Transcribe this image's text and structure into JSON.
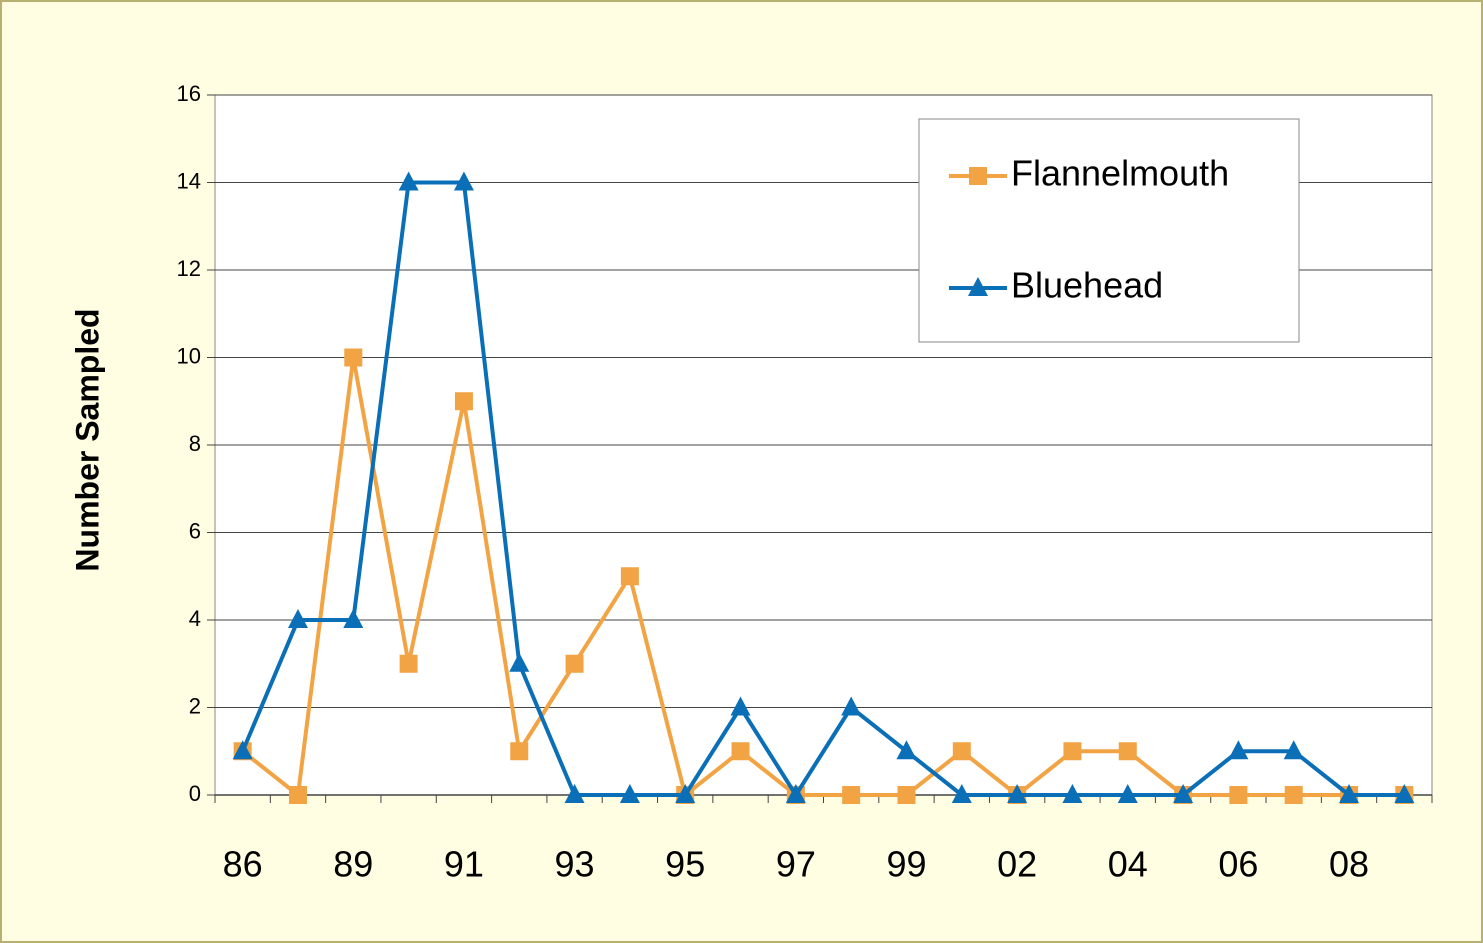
{
  "chart_data": {
    "type": "line",
    "y_label": "Number Sampled",
    "categories": [
      "86",
      null,
      "89",
      null,
      "91",
      null,
      "93",
      null,
      "95",
      null,
      "97",
      null,
      "99",
      null,
      "02",
      null,
      "04",
      null,
      "06",
      null,
      "08",
      null
    ],
    "series": [
      {
        "name": "Flannelmouth",
        "color": "#f2a444",
        "marker": "square",
        "values": [
          1,
          0,
          10,
          3,
          9,
          1,
          3,
          5,
          0,
          1,
          0,
          0,
          0,
          1,
          0,
          1,
          1,
          0,
          0,
          0,
          0,
          0
        ]
      },
      {
        "name": "Bluehead",
        "color": "#0b6fb8",
        "marker": "triangle",
        "values": [
          1,
          4,
          4,
          14,
          14,
          3,
          0,
          0,
          0,
          2,
          0,
          2,
          1,
          0,
          0,
          0,
          0,
          0,
          1,
          1,
          0,
          0
        ]
      }
    ],
    "ylim": [
      0,
      16
    ],
    "yticks": [
      0,
      2,
      4,
      6,
      8,
      10,
      12,
      14,
      16
    ],
    "grid": true,
    "legend": "upper right"
  }
}
